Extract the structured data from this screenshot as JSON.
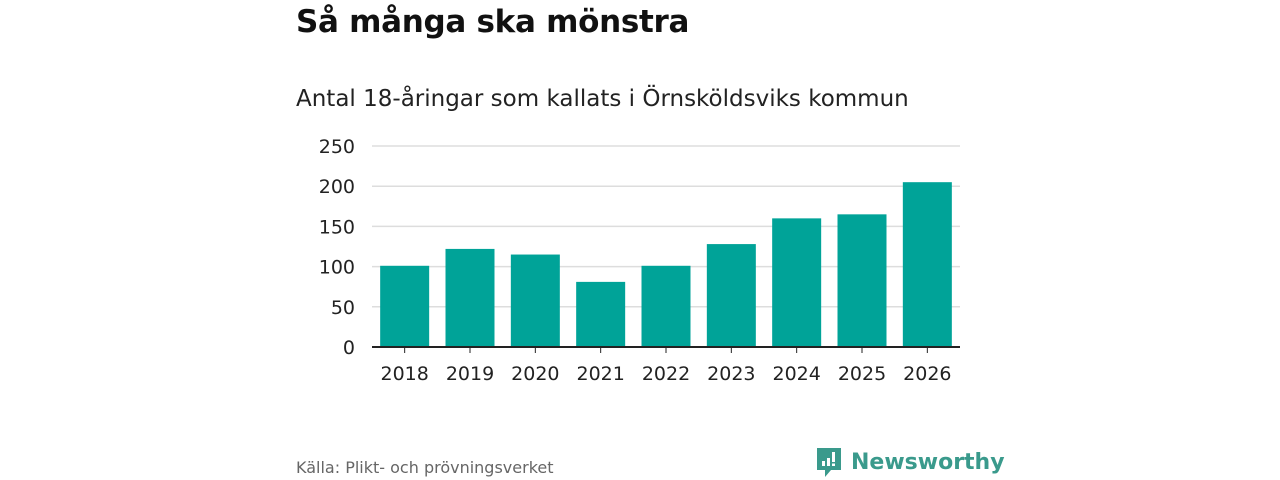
{
  "title": "Så många ska mönstra",
  "subtitle": "Antal 18-åringar som kallats i Örnsköldsviks kommun",
  "source": "Källa: Plikt- och prövningsverket",
  "brand": "Newsworthy",
  "colors": {
    "bar": "#00a398",
    "grid": "#dddddd",
    "axis": "#222222",
    "brand": "#3a9a8c"
  },
  "chart_data": {
    "type": "bar",
    "title": "Antal 18-åringar som kallats i Örnsköldsviks kommun",
    "xlabel": "",
    "ylabel": "",
    "categories": [
      "2018",
      "2019",
      "2020",
      "2021",
      "2022",
      "2023",
      "2024",
      "2025",
      "2026"
    ],
    "values": [
      101,
      122,
      115,
      81,
      101,
      128,
      160,
      165,
      205
    ],
    "ylim": [
      0,
      250
    ],
    "yticks": [
      0,
      50,
      100,
      150,
      200,
      250
    ],
    "grid": true,
    "legend": "none"
  }
}
